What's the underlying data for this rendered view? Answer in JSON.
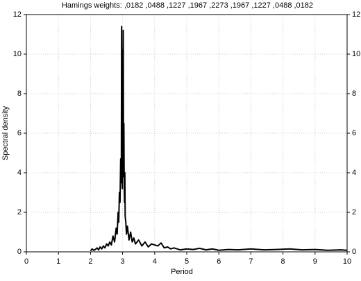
{
  "chart_data": {
    "type": "line",
    "title": "Hamings weights:  ,0182 ,0488 ,1227 ,1967 ,2273 ,1967 ,1227 ,0488 ,0182",
    "x_label": "Period",
    "y_label": "Spectral density",
    "x": [
      2.0,
      2.05,
      2.1,
      2.15,
      2.2,
      2.25,
      2.3,
      2.35,
      2.4,
      2.45,
      2.5,
      2.55,
      2.6,
      2.65,
      2.7,
      2.75,
      2.8,
      2.83,
      2.86,
      2.88,
      2.9,
      2.92,
      2.94,
      2.96,
      2.97,
      2.98,
      2.99,
      3.0,
      3.01,
      3.02,
      3.03,
      3.04,
      3.05,
      3.06,
      3.07,
      3.08,
      3.1,
      3.12,
      3.15,
      3.2,
      3.25,
      3.3,
      3.35,
      3.4,
      3.5,
      3.6,
      3.7,
      3.8,
      3.9,
      4.0,
      4.1,
      4.2,
      4.3,
      4.4,
      4.5,
      4.6,
      4.8,
      5.0,
      5.2,
      5.4,
      5.6,
      5.8,
      6.0,
      6.3,
      6.6,
      7.0,
      7.4,
      7.8,
      8.2,
      8.6,
      9.0,
      9.4,
      9.8,
      10.0
    ],
    "values": [
      0.05,
      0.15,
      0.08,
      0.12,
      0.2,
      0.1,
      0.25,
      0.15,
      0.3,
      0.2,
      0.4,
      0.3,
      0.5,
      0.35,
      0.8,
      0.5,
      1.2,
      0.9,
      2.0,
      1.5,
      3.0,
      2.5,
      4.7,
      3.5,
      11.4,
      4.8,
      3.2,
      10.2,
      4.5,
      11.2,
      3.8,
      6.5,
      3.3,
      2.5,
      4.0,
      1.8,
      1.5,
      0.9,
      1.3,
      0.6,
      1.0,
      0.5,
      0.7,
      0.4,
      0.6,
      0.3,
      0.5,
      0.25,
      0.4,
      0.35,
      0.3,
      0.45,
      0.2,
      0.25,
      0.15,
      0.2,
      0.1,
      0.15,
      0.12,
      0.18,
      0.1,
      0.15,
      0.08,
      0.12,
      0.1,
      0.15,
      0.1,
      0.12,
      0.15,
      0.1,
      0.12,
      0.08,
      0.1,
      0.08
    ],
    "color": "#000000",
    "xlim": [
      0,
      10
    ],
    "xticks": [
      0,
      1,
      2,
      3,
      4,
      5,
      6,
      7,
      8,
      9,
      10
    ],
    "ylim": [
      0,
      12
    ],
    "yticks": [
      0,
      2,
      4,
      6,
      8,
      10,
      12
    ],
    "grid": true
  }
}
